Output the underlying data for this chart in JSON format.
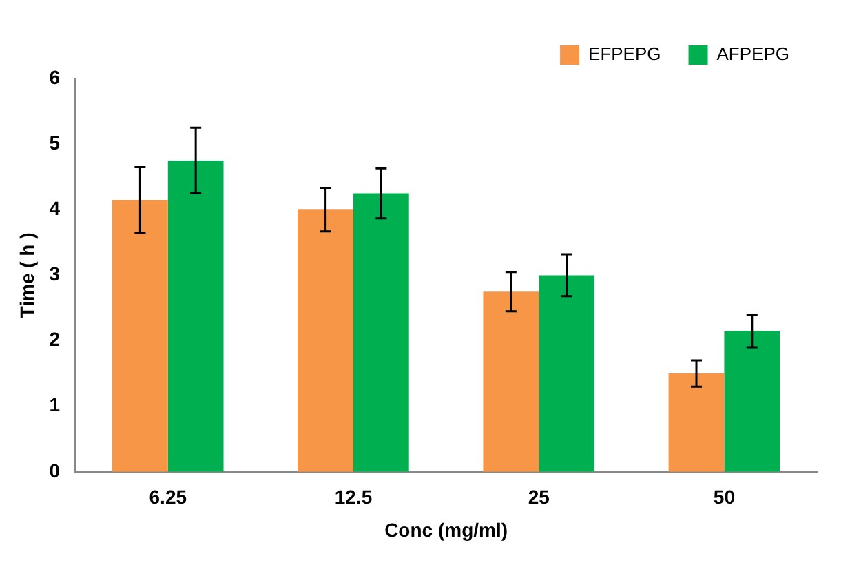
{
  "chart_data": {
    "type": "bar",
    "xlabel": "Conc (mg/ml)",
    "ylabel": "Time ( h )",
    "categories": [
      "6.25",
      "12.5",
      "25",
      "50"
    ],
    "series": [
      {
        "name": "EFPEPG",
        "color": "#f79646",
        "values": [
          4.15,
          4.0,
          2.75,
          1.5
        ],
        "errors": [
          0.5,
          0.33,
          0.3,
          0.2
        ]
      },
      {
        "name": "AFPEPG",
        "color": "#00b050",
        "values": [
          4.75,
          4.25,
          3.0,
          2.15
        ],
        "errors": [
          0.5,
          0.38,
          0.32,
          0.25
        ]
      }
    ],
    "ylim": [
      0,
      6
    ],
    "yticks": [
      0,
      1,
      2,
      3,
      4,
      5,
      6
    ],
    "grid": false,
    "legend": "top right"
  }
}
